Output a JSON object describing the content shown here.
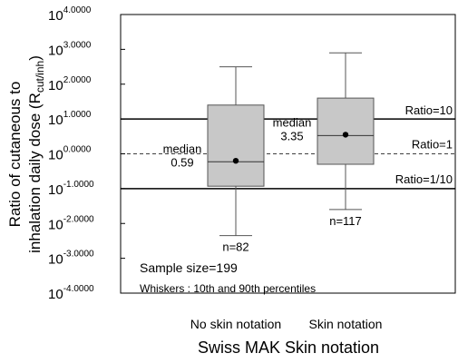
{
  "chart_data": {
    "type": "box",
    "xlabel": "Swiss MAK Skin notation",
    "ylabel_line1": "Ratio of cutaneous to",
    "ylabel_line2_main": "inhalation daily dose (R",
    "ylabel_line2_sub": "cut/inh",
    "ylabel_line2_end": ")",
    "yscale": "log10",
    "ylim_exponent": [
      -4,
      4
    ],
    "ytick_exponents": [
      4,
      3,
      2,
      1,
      0,
      -1,
      -2,
      -3,
      -4
    ],
    "ytick_base": "10",
    "ytick_exponent_labels": [
      "4.0000",
      "3.0000",
      "2.0000",
      "1.0000",
      "0.0000",
      "-1.0000",
      "-2.0000",
      "-3.0000",
      "-4.0000"
    ],
    "categories": [
      "No skin notation",
      "Skin notation"
    ],
    "boxes": [
      {
        "category": "No skin notation",
        "whisker_low_exp": -2.35,
        "q1_exp": -0.93,
        "median_exp": -0.229,
        "mean_exp": -0.2,
        "q3_exp": 1.4,
        "whisker_high_exp": 2.5,
        "median_label_1": "median",
        "median_label_2": "0.59",
        "n_label": "n=82"
      },
      {
        "category": "Skin notation",
        "whisker_low_exp": -1.6,
        "q1_exp": -0.3,
        "median_exp": 0.525,
        "mean_exp": 0.55,
        "q3_exp": 1.6,
        "whisker_high_exp": 2.9,
        "median_label_1": "median",
        "median_label_2": "3.35",
        "n_label": "n=117"
      }
    ],
    "reference_lines": [
      {
        "label": "Ratio=10",
        "exp": 1,
        "style": "solid"
      },
      {
        "label": "Ratio=1",
        "exp": 0,
        "style": "dashed"
      },
      {
        "label": "Ratio=1/10",
        "exp": -1,
        "style": "solid"
      }
    ],
    "annotations": {
      "sample_size": "Sample size=199",
      "whiskers_note": "Whiskers : 10th and 90th percentiles"
    },
    "colors": {
      "box_fill": "#c8c8c8",
      "line": "#000000",
      "whisker": "#555555"
    }
  }
}
